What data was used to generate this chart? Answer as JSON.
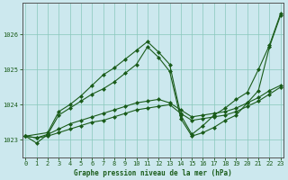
{
  "title": "Graphe pression niveau de la mer (hPa)",
  "background_color": "#cce8ee",
  "line_color": "#1a5c1a",
  "ylim": [
    1022.5,
    1026.9
  ],
  "xlim": [
    -0.3,
    23.3
  ],
  "yticks": [
    1023,
    1024,
    1025,
    1026
  ],
  "xticks": [
    0,
    1,
    2,
    3,
    4,
    5,
    6,
    7,
    8,
    9,
    10,
    11,
    12,
    13,
    14,
    15,
    16,
    17,
    18,
    19,
    20,
    21,
    22,
    23
  ],
  "series_zigzag": {
    "x": [
      0,
      1,
      2,
      3,
      4,
      5,
      6,
      7,
      8,
      9,
      10,
      11,
      12,
      13,
      14,
      15,
      16,
      17,
      18,
      19,
      20,
      21,
      22,
      23
    ],
    "y": [
      1023.1,
      1022.9,
      1023.15,
      1023.7,
      1023.9,
      1024.1,
      1024.3,
      1024.45,
      1024.65,
      1024.9,
      1025.15,
      1025.65,
      1025.35,
      1024.95,
      1023.6,
      1023.1,
      1023.2,
      1023.35,
      1023.55,
      1023.7,
      1024.05,
      1024.4,
      1025.65,
      1026.55
    ]
  },
  "series_upper": {
    "x": [
      0,
      2,
      3,
      4,
      5,
      6,
      7,
      8,
      9,
      10,
      11,
      12,
      13,
      14,
      15,
      16,
      17,
      18,
      19,
      20,
      21,
      22,
      23
    ],
    "y": [
      1023.1,
      1023.2,
      1023.8,
      1024.0,
      1024.25,
      1024.55,
      1024.85,
      1025.05,
      1025.3,
      1025.55,
      1025.8,
      1025.5,
      1025.15,
      1023.7,
      1023.15,
      1023.4,
      1023.7,
      1023.9,
      1024.15,
      1024.35,
      1025.0,
      1025.7,
      1026.6
    ]
  },
  "series_lower1": {
    "x": [
      0,
      1,
      2,
      3,
      4,
      5,
      6,
      7,
      8,
      9,
      10,
      11,
      12,
      13,
      14,
      15,
      16,
      17,
      18,
      19,
      20,
      21,
      22,
      23
    ],
    "y": [
      1023.1,
      1023.05,
      1023.1,
      1023.2,
      1023.3,
      1023.4,
      1023.5,
      1023.55,
      1023.65,
      1023.75,
      1023.85,
      1023.9,
      1023.95,
      1024.0,
      1023.75,
      1023.55,
      1023.6,
      1023.65,
      1023.7,
      1023.8,
      1023.95,
      1024.1,
      1024.3,
      1024.5
    ]
  },
  "series_lower2": {
    "x": [
      0,
      1,
      2,
      3,
      4,
      5,
      6,
      7,
      8,
      9,
      10,
      11,
      12,
      13,
      14,
      15,
      16,
      17,
      18,
      19,
      20,
      21,
      22,
      23
    ],
    "y": [
      1023.1,
      1023.05,
      1023.15,
      1023.3,
      1023.45,
      1023.55,
      1023.65,
      1023.75,
      1023.85,
      1023.95,
      1024.05,
      1024.1,
      1024.15,
      1024.05,
      1023.85,
      1023.65,
      1023.7,
      1023.75,
      1023.8,
      1023.9,
      1024.05,
      1024.2,
      1024.4,
      1024.55
    ]
  }
}
